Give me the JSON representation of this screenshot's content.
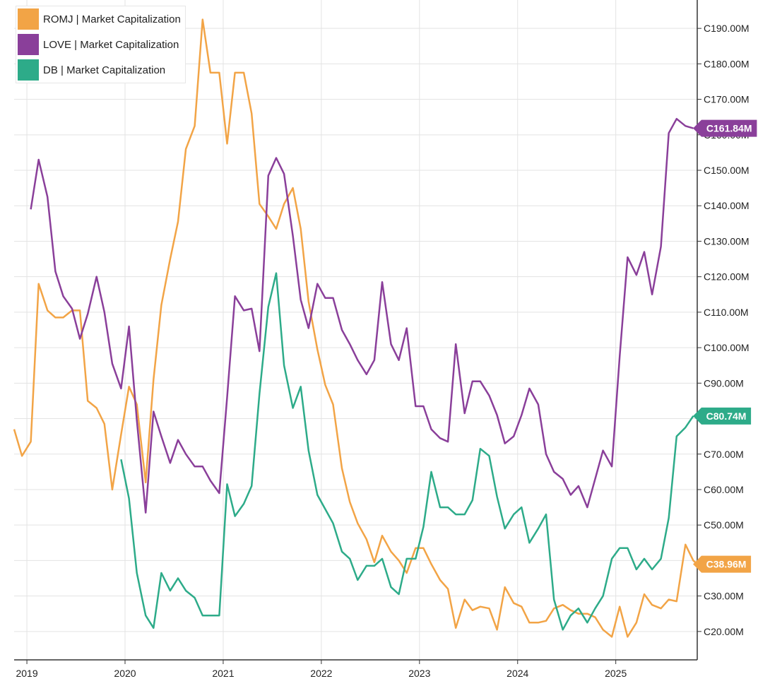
{
  "legend": {
    "items": [
      {
        "label": "ROMJ | Market Capitalization",
        "color": "#f2a446"
      },
      {
        "label": "LOVE | Market Capitalization",
        "color": "#8a3f9a"
      },
      {
        "label": "DB | Market Capitalization",
        "color": "#2dab89"
      }
    ]
  },
  "chart_data": {
    "type": "line",
    "x_axis": {
      "ticks": [
        "2019",
        "2020",
        "2021",
        "2022",
        "2023",
        "2024",
        "2025"
      ],
      "range": [
        2018.87,
        2025.83
      ]
    },
    "y_axis": {
      "position": "right",
      "range": [
        12,
        198
      ],
      "ticks": [
        {
          "value": 20,
          "label": "C20.00M"
        },
        {
          "value": 30,
          "label": "C30.00M"
        },
        {
          "value": 40,
          "label": "C40.00M"
        },
        {
          "value": 50,
          "label": "C50.00M"
        },
        {
          "value": 60,
          "label": "C60.00M"
        },
        {
          "value": 70,
          "label": "C70.00M"
        },
        {
          "value": 80,
          "label": "C80.00M"
        },
        {
          "value": 90,
          "label": "C90.00M"
        },
        {
          "value": 100,
          "label": "C100.00M"
        },
        {
          "value": 110,
          "label": "C110.00M"
        },
        {
          "value": 120,
          "label": "C120.00M"
        },
        {
          "value": 130,
          "label": "C130.00M"
        },
        {
          "value": 140,
          "label": "C140.00M"
        },
        {
          "value": 150,
          "label": "C150.00M"
        },
        {
          "value": 160,
          "label": "C160.00M"
        },
        {
          "value": 170,
          "label": "C170.00M"
        },
        {
          "value": 180,
          "label": "C180.00M"
        },
        {
          "value": 190,
          "label": "C190.00M"
        }
      ]
    },
    "grid": true,
    "legend_position": "top-left",
    "series": [
      {
        "name": "ROMJ | Market Capitalization",
        "color": "#f2a446",
        "end_label": "C38.96M",
        "points": [
          [
            2018.87,
            77
          ],
          [
            2018.95,
            69.5
          ],
          [
            2019.04,
            73.5
          ],
          [
            2019.12,
            118
          ],
          [
            2019.21,
            110.5
          ],
          [
            2019.29,
            108.5
          ],
          [
            2019.37,
            108.5
          ],
          [
            2019.46,
            110.5
          ],
          [
            2019.54,
            110.5
          ],
          [
            2019.62,
            85
          ],
          [
            2019.71,
            83
          ],
          [
            2019.79,
            78.5
          ],
          [
            2019.87,
            60
          ],
          [
            2019.96,
            75.5
          ],
          [
            2020.04,
            89
          ],
          [
            2020.12,
            84
          ],
          [
            2020.21,
            62
          ],
          [
            2020.29,
            91
          ],
          [
            2020.37,
            112
          ],
          [
            2020.46,
            125
          ],
          [
            2020.54,
            135.5
          ],
          [
            2020.62,
            156
          ],
          [
            2020.71,
            162.5
          ],
          [
            2020.79,
            192.5
          ],
          [
            2020.87,
            177.5
          ],
          [
            2020.96,
            177.5
          ],
          [
            2021.04,
            157.5
          ],
          [
            2021.12,
            177.5
          ],
          [
            2021.21,
            177.5
          ],
          [
            2021.29,
            166
          ],
          [
            2021.37,
            140.5
          ],
          [
            2021.46,
            137
          ],
          [
            2021.54,
            133.5
          ],
          [
            2021.62,
            140.5
          ],
          [
            2021.71,
            145
          ],
          [
            2021.79,
            133.5
          ],
          [
            2021.87,
            113
          ],
          [
            2021.96,
            99.5
          ],
          [
            2022.04,
            89.5
          ],
          [
            2022.12,
            84
          ],
          [
            2022.21,
            66
          ],
          [
            2022.29,
            56.5
          ],
          [
            2022.37,
            50.5
          ],
          [
            2022.46,
            46
          ],
          [
            2022.54,
            39.5
          ],
          [
            2022.62,
            47
          ],
          [
            2022.71,
            42.5
          ],
          [
            2022.79,
            40
          ],
          [
            2022.87,
            36.5
          ],
          [
            2022.96,
            43.5
          ],
          [
            2023.04,
            43.5
          ],
          [
            2023.12,
            39
          ],
          [
            2023.21,
            34.5
          ],
          [
            2023.29,
            32
          ],
          [
            2023.37,
            21
          ],
          [
            2023.46,
            29
          ],
          [
            2023.54,
            26
          ],
          [
            2023.62,
            27
          ],
          [
            2023.71,
            26.5
          ],
          [
            2023.79,
            20.5
          ],
          [
            2023.87,
            32.5
          ],
          [
            2023.96,
            28
          ],
          [
            2024.04,
            27
          ],
          [
            2024.12,
            22.5
          ],
          [
            2024.21,
            22.5
          ],
          [
            2024.29,
            23
          ],
          [
            2024.37,
            26.5
          ],
          [
            2024.46,
            27.5
          ],
          [
            2024.54,
            26
          ],
          [
            2024.62,
            25
          ],
          [
            2024.71,
            25
          ],
          [
            2024.79,
            24
          ],
          [
            2024.87,
            20.5
          ],
          [
            2024.96,
            18.5
          ],
          [
            2025.04,
            27
          ],
          [
            2025.12,
            18.5
          ],
          [
            2025.21,
            22.5
          ],
          [
            2025.29,
            30.5
          ],
          [
            2025.37,
            27.5
          ],
          [
            2025.46,
            26.5
          ],
          [
            2025.54,
            29
          ],
          [
            2025.62,
            28.5
          ],
          [
            2025.71,
            44.5
          ],
          [
            2025.79,
            40
          ],
          [
            2025.83,
            38.96
          ]
        ]
      },
      {
        "name": "LOVE | Market Capitalization",
        "color": "#8a3f9a",
        "end_label": "C161.84M",
        "points": [
          [
            2019.04,
            139
          ],
          [
            2019.12,
            153
          ],
          [
            2019.21,
            142.5
          ],
          [
            2019.29,
            121.5
          ],
          [
            2019.37,
            114.5
          ],
          [
            2019.46,
            111
          ],
          [
            2019.54,
            102.5
          ],
          [
            2019.62,
            109.5
          ],
          [
            2019.71,
            120
          ],
          [
            2019.79,
            110
          ],
          [
            2019.87,
            95.5
          ],
          [
            2019.96,
            88.5
          ],
          [
            2020.04,
            106
          ],
          [
            2020.12,
            79.5
          ],
          [
            2020.21,
            53.5
          ],
          [
            2020.29,
            82
          ],
          [
            2020.37,
            75
          ],
          [
            2020.46,
            67.5
          ],
          [
            2020.54,
            74
          ],
          [
            2020.62,
            70
          ],
          [
            2020.71,
            66.5
          ],
          [
            2020.79,
            66.5
          ],
          [
            2020.87,
            62.5
          ],
          [
            2020.96,
            59
          ],
          [
            2021.04,
            86
          ],
          [
            2021.12,
            114.5
          ],
          [
            2021.21,
            110.5
          ],
          [
            2021.29,
            111
          ],
          [
            2021.37,
            99
          ],
          [
            2021.46,
            148.5
          ],
          [
            2021.54,
            153.5
          ],
          [
            2021.62,
            149
          ],
          [
            2021.71,
            131.5
          ],
          [
            2021.79,
            113.5
          ],
          [
            2021.87,
            105.5
          ],
          [
            2021.96,
            118
          ],
          [
            2022.04,
            114
          ],
          [
            2022.12,
            114
          ],
          [
            2022.21,
            105
          ],
          [
            2022.29,
            101
          ],
          [
            2022.37,
            96.5
          ],
          [
            2022.46,
            92.5
          ],
          [
            2022.54,
            96.5
          ],
          [
            2022.62,
            118.5
          ],
          [
            2022.71,
            101
          ],
          [
            2022.79,
            96.5
          ],
          [
            2022.87,
            105.5
          ],
          [
            2022.96,
            83.5
          ],
          [
            2023.04,
            83.5
          ],
          [
            2023.12,
            77
          ],
          [
            2023.21,
            74.5
          ],
          [
            2023.29,
            73.5
          ],
          [
            2023.37,
            101
          ],
          [
            2023.46,
            81.5
          ],
          [
            2023.54,
            90.5
          ],
          [
            2023.62,
            90.5
          ],
          [
            2023.71,
            86.5
          ],
          [
            2023.79,
            81
          ],
          [
            2023.87,
            73
          ],
          [
            2023.96,
            75
          ],
          [
            2024.04,
            81
          ],
          [
            2024.12,
            88.5
          ],
          [
            2024.21,
            84
          ],
          [
            2024.29,
            70
          ],
          [
            2024.37,
            65
          ],
          [
            2024.46,
            63
          ],
          [
            2024.54,
            58.5
          ],
          [
            2024.62,
            61
          ],
          [
            2024.71,
            55
          ],
          [
            2024.79,
            63
          ],
          [
            2024.87,
            71
          ],
          [
            2024.96,
            66.5
          ],
          [
            2025.04,
            97.5
          ],
          [
            2025.12,
            125.5
          ],
          [
            2025.21,
            120.5
          ],
          [
            2025.29,
            127
          ],
          [
            2025.37,
            115
          ],
          [
            2025.46,
            128.5
          ],
          [
            2025.54,
            160.5
          ],
          [
            2025.62,
            164.5
          ],
          [
            2025.71,
            162.5
          ],
          [
            2025.79,
            161.84
          ]
        ]
      },
      {
        "name": "DB | Market Capitalization",
        "color": "#2dab89",
        "end_label": "C80.74M",
        "points": [
          [
            2019.96,
            68.5
          ],
          [
            2020.04,
            57.5
          ],
          [
            2020.12,
            36.5
          ],
          [
            2020.21,
            24.5
          ],
          [
            2020.29,
            21
          ],
          [
            2020.37,
            36.5
          ],
          [
            2020.46,
            31.5
          ],
          [
            2020.54,
            35
          ],
          [
            2020.62,
            31.5
          ],
          [
            2020.71,
            29.5
          ],
          [
            2020.79,
            24.5
          ],
          [
            2020.87,
            24.5
          ],
          [
            2020.96,
            24.5
          ],
          [
            2021.04,
            61.5
          ],
          [
            2021.12,
            52.5
          ],
          [
            2021.21,
            56
          ],
          [
            2021.29,
            61
          ],
          [
            2021.37,
            87
          ],
          [
            2021.46,
            111.5
          ],
          [
            2021.54,
            121
          ],
          [
            2021.62,
            95
          ],
          [
            2021.71,
            83
          ],
          [
            2021.79,
            89
          ],
          [
            2021.87,
            71
          ],
          [
            2021.96,
            58.5
          ],
          [
            2022.04,
            54.5
          ],
          [
            2022.12,
            50.5
          ],
          [
            2022.21,
            42.5
          ],
          [
            2022.29,
            40.5
          ],
          [
            2022.37,
            34.5
          ],
          [
            2022.46,
            38.5
          ],
          [
            2022.54,
            38.5
          ],
          [
            2022.62,
            40.5
          ],
          [
            2022.71,
            32.5
          ],
          [
            2022.79,
            30.5
          ],
          [
            2022.87,
            40.5
          ],
          [
            2022.96,
            40.5
          ],
          [
            2023.04,
            49.5
          ],
          [
            2023.12,
            65
          ],
          [
            2023.21,
            55
          ],
          [
            2023.29,
            55
          ],
          [
            2023.37,
            53
          ],
          [
            2023.46,
            53
          ],
          [
            2023.54,
            57
          ],
          [
            2023.62,
            71.5
          ],
          [
            2023.71,
            69.5
          ],
          [
            2023.79,
            58
          ],
          [
            2023.87,
            49
          ],
          [
            2023.96,
            53
          ],
          [
            2024.04,
            55
          ],
          [
            2024.12,
            45
          ],
          [
            2024.21,
            49
          ],
          [
            2024.29,
            53
          ],
          [
            2024.37,
            29
          ],
          [
            2024.46,
            20.5
          ],
          [
            2024.54,
            24.5
          ],
          [
            2024.62,
            26.5
          ],
          [
            2024.71,
            22.5
          ],
          [
            2024.79,
            26.5
          ],
          [
            2024.87,
            30
          ],
          [
            2024.96,
            40.5
          ],
          [
            2025.04,
            43.5
          ],
          [
            2025.12,
            43.5
          ],
          [
            2025.21,
            37.5
          ],
          [
            2025.29,
            40.5
          ],
          [
            2025.37,
            37.5
          ],
          [
            2025.46,
            40.5
          ],
          [
            2025.54,
            52
          ],
          [
            2025.62,
            75
          ],
          [
            2025.71,
            77.5
          ],
          [
            2025.79,
            80.74
          ]
        ]
      }
    ]
  }
}
